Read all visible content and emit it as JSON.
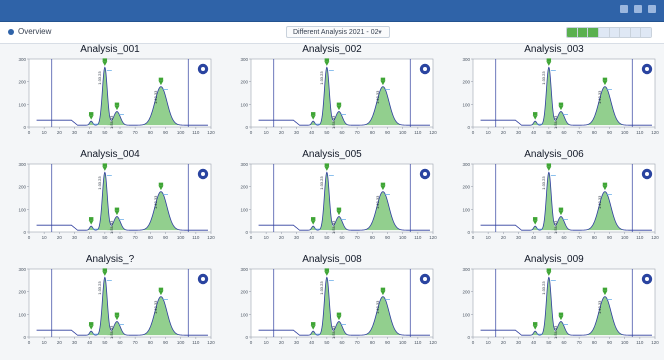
{
  "toolbar": {
    "view_label": "Overview",
    "select_value": "Different Analysis 2021 - 02",
    "chevron_icon": "chevron-down-icon"
  },
  "segment_count": 8,
  "segment_active": 3,
  "panels": [
    {
      "title": "Analysis_001"
    },
    {
      "title": "Analysis_002"
    },
    {
      "title": "Analysis_003"
    },
    {
      "title": "Analysis_004"
    },
    {
      "title": "Analysis_005"
    },
    {
      "title": "Analysis_006"
    },
    {
      "title": "Analysis_?"
    },
    {
      "title": "Analysis_008"
    },
    {
      "title": "Analysis_009"
    }
  ],
  "chromatogram": {
    "x_range": [
      0,
      120
    ],
    "y_range": [
      0,
      300
    ],
    "x_ticks": [
      0,
      10,
      20,
      30,
      40,
      50,
      60,
      70,
      80,
      90,
      100,
      110,
      120
    ],
    "y_ticks": [
      0,
      100,
      200,
      300
    ],
    "baseline_segments": [
      [
        5,
        28
      ],
      [
        28,
        32
      ],
      [
        32,
        37
      ]
    ],
    "baseline_levels": [
      30,
      30,
      8
    ],
    "peaks": [
      {
        "rt": 41,
        "height": 18,
        "width": 1.0,
        "peak_label": "1"
      },
      {
        "rt": 50,
        "height": 255,
        "width": 1.6,
        "peak_label": "1:33.23"
      },
      {
        "rt": 58,
        "height": 60,
        "width": 2.2,
        "peak_label": "1:58.33"
      },
      {
        "rt": 87,
        "height": 170,
        "width": 4.0,
        "peak_label": "1:42.33"
      }
    ],
    "vertical_markers": [
      15,
      105
    ],
    "colors": {
      "trace": "#2f3e9e",
      "fill": "#7fc77a",
      "marker": "#3fa535",
      "badge": "#2a44a0",
      "axis": "#9ca3af"
    }
  }
}
